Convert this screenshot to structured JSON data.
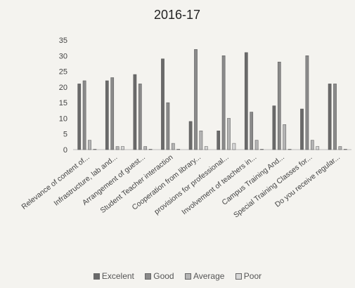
{
  "chart_data": {
    "type": "bar",
    "title": "2016-17",
    "categories": [
      "Relevance of content of...",
      "Infrastructure, lab and...",
      "Arrangement of guest...",
      "Student Teacher interaction",
      "Cooperation from library...",
      "provisions for professional...",
      "Involvement of teachers in...",
      "Campus Training And...",
      "Special Training Classes for...",
      "Do you receive regular..."
    ],
    "series": [
      {
        "name": "Excelent",
        "values": [
          21,
          22,
          24,
          29,
          9,
          6,
          31,
          14,
          13,
          21
        ]
      },
      {
        "name": "Good",
        "values": [
          22,
          23,
          21,
          15,
          32,
          30,
          12,
          28,
          30,
          21
        ]
      },
      {
        "name": "Average",
        "values": [
          3,
          1,
          1,
          2,
          6,
          10,
          3,
          8,
          3,
          1
        ]
      },
      {
        "name": "Poor",
        "values": [
          0,
          1,
          0,
          0,
          1,
          2,
          0,
          0,
          1,
          0
        ]
      }
    ],
    "yticks": [
      0,
      5,
      10,
      15,
      20,
      25,
      30,
      35
    ],
    "ylim": [
      0,
      35
    ],
    "grid": false,
    "legend_position": "bottom",
    "colors": [
      "#6a6a6a",
      "#8a8a8a",
      "#b4b4b4",
      "#d6d6d6"
    ]
  }
}
